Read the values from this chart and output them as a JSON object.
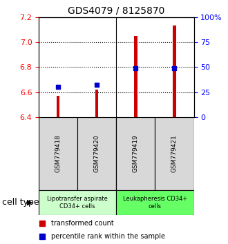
{
  "title": "GDS4079 / 8125870",
  "samples": [
    "GSM779418",
    "GSM779420",
    "GSM779419",
    "GSM779421"
  ],
  "transformed_counts": [
    6.57,
    6.62,
    7.05,
    7.13
  ],
  "percentile_ranks": [
    0.3,
    0.32,
    0.49,
    0.49
  ],
  "ylim_left": [
    6.4,
    7.2
  ],
  "ylim_right": [
    0,
    100
  ],
  "yticks_left": [
    6.4,
    6.6,
    6.8,
    7.0,
    7.2
  ],
  "yticks_right": [
    0,
    25,
    50,
    75,
    100
  ],
  "bar_color": "#cc0000",
  "dot_color": "#0000cc",
  "bar_bottom": 6.4,
  "bar_width": 0.08,
  "cell_type_groups": [
    {
      "label": "Lipotransfer aspirate\nCD34+ cells",
      "color": "#ccffcc",
      "start": 0,
      "end": 2
    },
    {
      "label": "Leukapheresis CD34+\ncells",
      "color": "#66ff66",
      "start": 2,
      "end": 4
    }
  ],
  "cell_type_label": "cell type",
  "legend_bar_label": "transformed count",
  "legend_dot_label": "percentile rank within the sample",
  "title_fontsize": 10,
  "tick_fontsize": 8,
  "sample_fontsize": 6.5,
  "celltype_fontsize": 6,
  "legend_fontsize": 7,
  "cell_label_fontsize": 9,
  "gray_box_color": "#d8d8d8",
  "separator_color": "black"
}
